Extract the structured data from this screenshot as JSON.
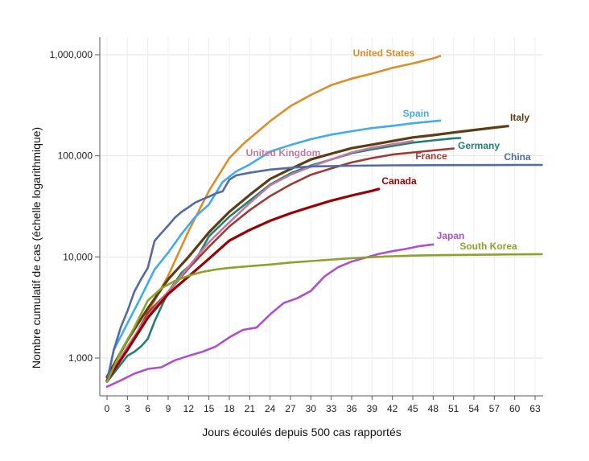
{
  "chart_data": {
    "type": "line",
    "title": "",
    "xlabel": "Jours écoulés depuis 500 cas rapportés",
    "ylabel": "Nombre cumulatif de cas (échelle logarithmique)",
    "yscale": "log",
    "xlim": [
      0,
      64
    ],
    "ylim": [
      450,
      1200000
    ],
    "grid": true,
    "x_ticks": [
      0,
      3,
      6,
      9,
      12,
      15,
      18,
      21,
      24,
      27,
      30,
      33,
      36,
      39,
      42,
      45,
      48,
      51,
      54,
      57,
      60,
      63
    ],
    "y_ticks": [
      1000,
      10000,
      100000,
      1000000
    ],
    "y_tick_labels": [
      "1,000",
      "10,000",
      "100,000",
      "1,000,000"
    ],
    "series": [
      {
        "name": "United States",
        "color": "#DD8E29",
        "x": [
          0,
          3,
          6,
          9,
          12,
          15,
          18,
          20,
          24,
          27,
          30,
          33,
          36,
          39,
          42,
          45,
          48,
          49
        ],
        "y": [
          600,
          1200,
          2800,
          6500,
          18000,
          45000,
          95000,
          130000,
          220000,
          310000,
          400000,
          500000,
          580000,
          650000,
          740000,
          820000,
          920000,
          970000
        ]
      },
      {
        "name": "Spain",
        "color": "#44AAEE",
        "x": [
          0,
          1,
          3,
          5,
          7,
          9,
          11,
          13,
          15,
          17,
          19,
          21,
          24,
          27,
          30,
          33,
          36,
          39,
          42,
          45,
          47,
          49
        ],
        "y": [
          600,
          1200,
          2200,
          4000,
          7500,
          11000,
          17000,
          25000,
          33000,
          55000,
          70000,
          82000,
          110000,
          128000,
          146000,
          162000,
          175000,
          188000,
          198000,
          210000,
          216000,
          223000
        ]
      },
      {
        "name": "Italy",
        "color": "#5E3C14",
        "x": [
          0,
          3,
          6,
          9,
          12,
          15,
          18,
          21,
          24,
          27,
          30,
          33,
          36,
          39,
          42,
          45,
          48,
          51,
          54,
          57,
          59
        ],
        "y": [
          650,
          1500,
          3100,
          6000,
          10000,
          17500,
          27900,
          41000,
          59000,
          74000,
          92000,
          105000,
          119000,
          129000,
          140000,
          152000,
          160000,
          170000,
          180000,
          190000,
          197000
        ]
      },
      {
        "name": "Germany",
        "color": "#1F8073",
        "x": [
          0,
          3,
          4,
          5,
          6,
          7,
          9,
          11,
          13,
          15,
          18,
          21,
          24,
          27,
          30,
          33,
          36,
          39,
          42,
          45,
          48,
          51,
          52
        ],
        "y": [
          580,
          1050,
          1150,
          1300,
          1550,
          2300,
          4500,
          7000,
          9200,
          16000,
          25000,
          36000,
          52000,
          67000,
          80000,
          92000,
          106000,
          116000,
          125000,
          135000,
          142000,
          149000,
          150000
        ]
      },
      {
        "name": "France",
        "color": "#A03A32",
        "x": [
          0,
          3,
          6,
          9,
          12,
          15,
          18,
          21,
          24,
          27,
          30,
          33,
          36,
          39,
          42,
          45,
          48,
          51
        ],
        "y": [
          600,
          1200,
          2800,
          4500,
          7700,
          12600,
          20000,
          29000,
          40000,
          52000,
          65000,
          75000,
          86000,
          95000,
          103000,
          108000,
          113000,
          118000
        ]
      },
      {
        "name": "United Kingdom",
        "color": "#C27BA0",
        "x": [
          0,
          3,
          6,
          9,
          12,
          15,
          18,
          21,
          24,
          27,
          30,
          33,
          36,
          39,
          42,
          45
        ],
        "y": [
          600,
          1300,
          2600,
          4500,
          8000,
          14000,
          22000,
          34000,
          51000,
          65000,
          78000,
          92000,
          108000,
          120000,
          130000,
          140000
        ]
      },
      {
        "name": "China",
        "color": "#526AA8",
        "x": [
          0,
          1,
          2,
          3,
          4,
          5,
          6,
          7,
          8,
          9,
          10,
          11,
          12,
          13,
          14,
          15,
          16,
          17,
          18,
          19,
          21,
          24,
          27,
          30,
          36,
          42,
          48,
          54,
          60,
          64
        ],
        "y": [
          580,
          1200,
          2000,
          2900,
          4500,
          6000,
          7800,
          14400,
          17200,
          20400,
          24500,
          28000,
          31000,
          34500,
          37000,
          39500,
          42500,
          44500,
          58000,
          64000,
          68000,
          73000,
          76000,
          78500,
          79800,
          80500,
          80800,
          81000,
          81200,
          81300
        ]
      },
      {
        "name": "Canada",
        "color": "#990000",
        "x": [
          0,
          3,
          6,
          9,
          12,
          15,
          18,
          21,
          24,
          27,
          30,
          33,
          36,
          39,
          40
        ],
        "y": [
          600,
          1200,
          2500,
          4300,
          6400,
          9600,
          14500,
          18500,
          22800,
          27000,
          31300,
          36000,
          40500,
          45000,
          47000
        ]
      },
      {
        "name": "Japan",
        "color": "#B04FCE",
        "x": [
          0,
          2,
          4,
          6,
          8,
          10,
          12,
          14,
          16,
          18,
          20,
          22,
          24,
          26,
          28,
          30,
          32,
          34,
          36,
          38,
          40,
          42,
          44,
          46,
          48
        ],
        "y": [
          520,
          600,
          700,
          780,
          810,
          950,
          1050,
          1150,
          1300,
          1600,
          1900,
          2000,
          2700,
          3500,
          3900,
          4600,
          6400,
          7900,
          9000,
          9800,
          10700,
          11400,
          12000,
          12800,
          13300
        ]
      },
      {
        "name": "South Korea",
        "color": "#8EA12C",
        "x": [
          0,
          2,
          4,
          6,
          8,
          10,
          12,
          14,
          16,
          18,
          21,
          24,
          27,
          30,
          33,
          36,
          39,
          42,
          45,
          48,
          51,
          54,
          57,
          60,
          64
        ],
        "y": [
          580,
          1150,
          2000,
          3700,
          4900,
          5800,
          6500,
          7100,
          7500,
          7800,
          8100,
          8400,
          8800,
          9100,
          9400,
          9700,
          9950,
          10150,
          10300,
          10400,
          10450,
          10500,
          10550,
          10600,
          10650
        ]
      }
    ]
  }
}
